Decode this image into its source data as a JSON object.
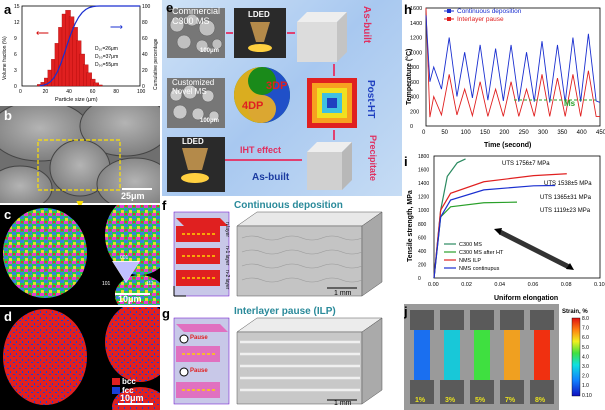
{
  "panels": {
    "a": {
      "label": "a",
      "xlabel": "Particle size (μm)",
      "ylabel_left": "Volume fraction (%)",
      "ylabel_right": "Cumulative percentage",
      "d10": "D₁₀=26μm",
      "d50": "D₅₀=37μm",
      "d90": "D₉₀=55μm",
      "xticks": [
        "0",
        "20",
        "40",
        "60",
        "80",
        "100"
      ],
      "yticks_left": [
        "0",
        "3",
        "6",
        "9",
        "12",
        "15"
      ],
      "yticks_right": [
        "0",
        "20",
        "40",
        "60",
        "80",
        "100"
      ]
    },
    "b": {
      "label": "b",
      "scale": "25μm"
    },
    "c": {
      "label": "c",
      "scale": "10μm",
      "ipf": [
        "001",
        "101",
        "111"
      ]
    },
    "d": {
      "label": "d",
      "scale": "10μm",
      "legend": [
        "bcc",
        "fcc"
      ],
      "colors": {
        "bcc": "#e02020",
        "fcc": "#1a3fd6"
      }
    },
    "e": {
      "label": "e",
      "commercial": "Commercial C300 MS",
      "scale1": "100μm",
      "ldeD1": "LDED",
      "as_built": "As-built",
      "custom": "Customized Novel MS",
      "scale2": "100μm",
      "dp3": "3DP",
      "dp4": "4DP",
      "post_ht": "Post-HT",
      "ldeD2": "LDED",
      "iht": "IHT effect",
      "as_built2": "As-built",
      "precipitate": "Precipitate"
    },
    "f": {
      "label": "f",
      "title": "Continuous deposition",
      "layers": [
        "n layer",
        "n-1 layer",
        "n-2 layer"
      ],
      "scale": "1 mm"
    },
    "g": {
      "label": "g",
      "title": "Interlayer pause (ILP)",
      "pause1": "Pause",
      "pause2": "Pause",
      "scale": "1 mm"
    },
    "h": {
      "label": "h",
      "legend1": "Continuous deposition",
      "legend2": "Interlayer pause",
      "ms": "Ms",
      "xlabel": "Time (second)",
      "ylabel": "Temperature (°C)",
      "xticks": [
        "0",
        "50",
        "100",
        "150",
        "200",
        "250",
        "300",
        "350",
        "400",
        "450"
      ],
      "yticks": [
        "0",
        "200",
        "400",
        "600",
        "800",
        "1000",
        "1200",
        "1400",
        "1600"
      ]
    },
    "i": {
      "label": "i",
      "ylabel": "Tensile strength, MPa",
      "xlabel": "Uniform elongation",
      "uts1": "UTS 1756±7 MPa",
      "uts2": "UTS 1538±5 MPa",
      "uts3": "UTS 1365±31 MPa",
      "uts4": "UTS 1119±23 MPa",
      "legend": [
        "C300 MS",
        "C300 MS after HT",
        "NMS ILP",
        "NMS continupus"
      ],
      "xticks": [
        "0.00",
        "0.02",
        "0.04",
        "0.06",
        "0.08",
        "0.10"
      ],
      "yticks": [
        "0",
        "200",
        "400",
        "600",
        "800",
        "1000",
        "1200",
        "1400",
        "1600",
        "1800"
      ]
    },
    "j": {
      "label": "j",
      "strain_title": "Strain, %",
      "strains": [
        "1%",
        "3%",
        "5%",
        "7%",
        "8%"
      ],
      "cbar_ticks": [
        "8.0",
        "7.0",
        "6.0",
        "5.0",
        "4.0",
        "3.0",
        "2.0",
        "1.0",
        "0.10"
      ]
    }
  },
  "chart_data": [
    {
      "type": "bar",
      "categories": [
        "15",
        "18",
        "21",
        "24",
        "27",
        "30",
        "33",
        "36",
        "39",
        "42",
        "45",
        "48",
        "51",
        "54",
        "57",
        "60",
        "63",
        "66"
      ],
      "values": [
        0.3,
        0.7,
        1.5,
        3,
        5,
        8,
        11,
        13.5,
        14.2,
        13,
        11,
        8.5,
        6,
        4,
        2.5,
        1.3,
        0.6,
        0.2
      ],
      "ylim": [
        0,
        15
      ],
      "xlabel": "Particle size (μm)",
      "ylabel": "Volume fraction (%)"
    },
    {
      "type": "line",
      "series": [
        {
          "name": "Continuous deposition",
          "x": [
            0,
            10,
            20,
            40,
            60,
            80,
            100,
            120,
            140,
            160,
            180,
            200,
            220,
            240,
            260,
            280,
            300,
            320,
            340,
            360,
            380,
            400,
            420,
            440,
            450
          ],
          "y": [
            1500,
            600,
            800,
            500,
            1200,
            400,
            1000,
            380,
            1100,
            350,
            1050,
            340,
            1100,
            330,
            1000,
            330,
            1150,
            320,
            1100,
            320,
            1200,
            330,
            1250,
            340,
            320
          ]
        },
        {
          "name": "Interlayer pause",
          "x": [
            0,
            10,
            20,
            40,
            60,
            80,
            100,
            120,
            140,
            160,
            180,
            200,
            220,
            240,
            260,
            280,
            300,
            320,
            340,
            360,
            380,
            400,
            420,
            440,
            450
          ],
          "y": [
            1600,
            120,
            400,
            150,
            700,
            150,
            500,
            140,
            600,
            130,
            500,
            130,
            600,
            130,
            500,
            130,
            700,
            130,
            650,
            130,
            700,
            130,
            750,
            130,
            130
          ]
        }
      ],
      "xlim": [
        0,
        450
      ],
      "ylim": [
        0,
        1600
      ]
    },
    {
      "type": "line",
      "series": [
        {
          "name": "C300 MS",
          "x": [
            0,
            0.004,
            0.008,
            0.014,
            0.019
          ],
          "y": [
            0,
            1000,
            1500,
            1700,
            1756
          ]
        },
        {
          "name": "C300 MS after HT",
          "x": [
            0,
            0.004,
            0.01,
            0.03,
            0.05
          ],
          "y": [
            0,
            900,
            1050,
            1110,
            1119
          ]
        },
        {
          "name": "NMS ILP",
          "x": [
            0,
            0.004,
            0.01,
            0.03,
            0.06,
            0.08
          ],
          "y": [
            0,
            1000,
            1250,
            1420,
            1510,
            1538
          ]
        },
        {
          "name": "NMS continupus",
          "x": [
            0,
            0.004,
            0.01,
            0.03,
            0.06,
            0.073
          ],
          "y": [
            0,
            900,
            1150,
            1300,
            1360,
            1365
          ]
        }
      ],
      "xlim": [
        0,
        0.1
      ],
      "ylim": [
        0,
        1800
      ]
    }
  ]
}
